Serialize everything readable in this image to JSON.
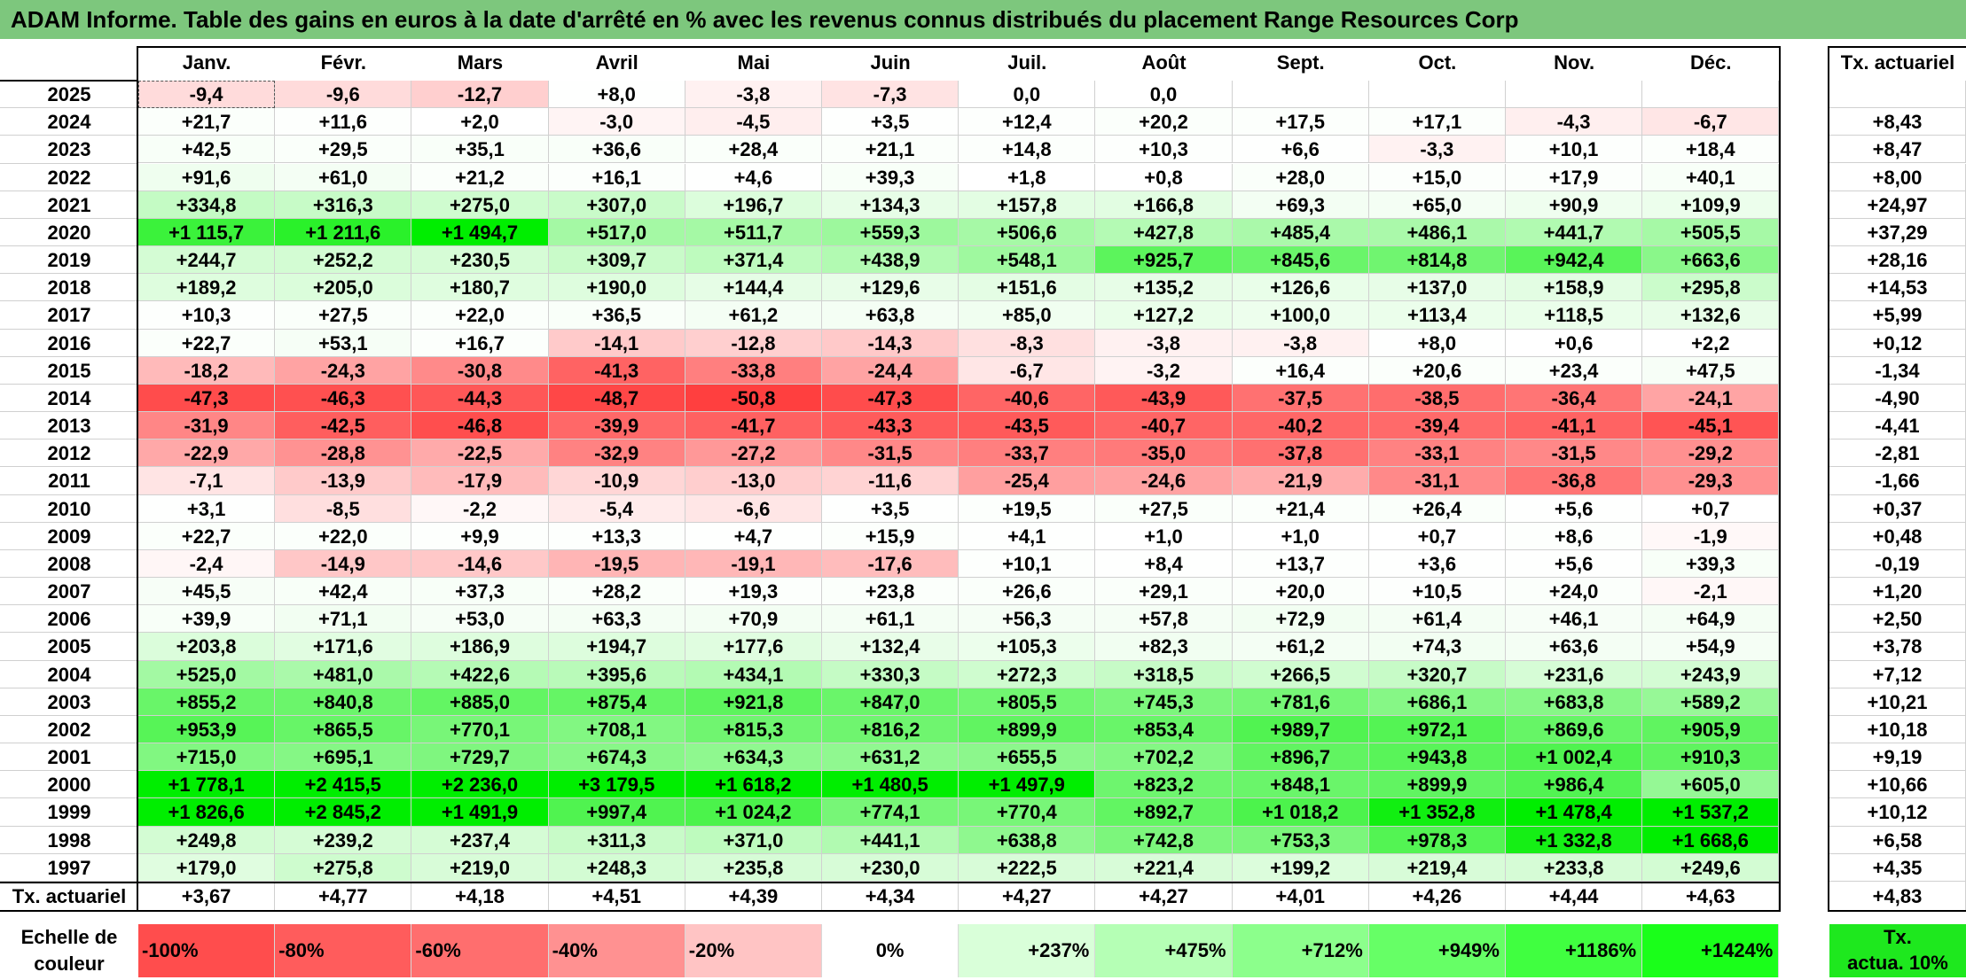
{
  "title": "ADAM Informe. Table des gains en euros à la date d'arrêté en % avec les revenus connus distribués du placement Range Resources Corp",
  "months": [
    "Janv.",
    "Févr.",
    "Mars",
    "Avril",
    "Mai",
    "Juin",
    "Juil.",
    "Août",
    "Sept.",
    "Oct.",
    "Nov.",
    "Déc."
  ],
  "annual_header": "Tx. actuariel",
  "rows": [
    {
      "year": "2025",
      "values": [
        "-9,4",
        "-9,6",
        "-12,7",
        "+8,0",
        "-3,8",
        "-7,3",
        "0,0",
        "0,0",
        "",
        "",
        "",
        ""
      ],
      "annual": ""
    },
    {
      "year": "2024",
      "values": [
        "+21,7",
        "+11,6",
        "+2,0",
        "-3,0",
        "-4,5",
        "+3,5",
        "+12,4",
        "+20,2",
        "+17,5",
        "+17,1",
        "-4,3",
        "-6,7"
      ],
      "annual": "+8,43"
    },
    {
      "year": "2023",
      "values": [
        "+42,5",
        "+29,5",
        "+35,1",
        "+36,6",
        "+28,4",
        "+21,1",
        "+14,8",
        "+10,3",
        "+6,6",
        "-3,3",
        "+10,1",
        "+18,4"
      ],
      "annual": "+8,47"
    },
    {
      "year": "2022",
      "values": [
        "+91,6",
        "+61,0",
        "+21,2",
        "+16,1",
        "+4,6",
        "+39,3",
        "+1,8",
        "+0,8",
        "+28,0",
        "+15,0",
        "+17,9",
        "+40,1"
      ],
      "annual": "+8,00"
    },
    {
      "year": "2021",
      "values": [
        "+334,8",
        "+316,3",
        "+275,0",
        "+307,0",
        "+196,7",
        "+134,3",
        "+157,8",
        "+166,8",
        "+69,3",
        "+65,0",
        "+90,9",
        "+109,9"
      ],
      "annual": "+24,97"
    },
    {
      "year": "2020",
      "values": [
        "+1 115,7",
        "+1 211,6",
        "+1 494,7",
        "+517,0",
        "+511,7",
        "+559,3",
        "+506,6",
        "+427,8",
        "+485,4",
        "+486,1",
        "+441,7",
        "+505,5"
      ],
      "annual": "+37,29"
    },
    {
      "year": "2019",
      "values": [
        "+244,7",
        "+252,2",
        "+230,5",
        "+309,7",
        "+371,4",
        "+438,9",
        "+548,1",
        "+925,7",
        "+845,6",
        "+814,8",
        "+942,4",
        "+663,6"
      ],
      "annual": "+28,16"
    },
    {
      "year": "2018",
      "values": [
        "+189,2",
        "+205,0",
        "+180,7",
        "+190,0",
        "+144,4",
        "+129,6",
        "+151,6",
        "+135,2",
        "+126,6",
        "+137,0",
        "+158,9",
        "+295,8"
      ],
      "annual": "+14,53"
    },
    {
      "year": "2017",
      "values": [
        "+10,3",
        "+27,5",
        "+22,0",
        "+36,5",
        "+61,2",
        "+63,8",
        "+85,0",
        "+127,2",
        "+100,0",
        "+113,4",
        "+118,5",
        "+132,6"
      ],
      "annual": "+5,99"
    },
    {
      "year": "2016",
      "values": [
        "+22,7",
        "+53,1",
        "+16,7",
        "-14,1",
        "-12,8",
        "-14,3",
        "-8,3",
        "-3,8",
        "-3,8",
        "+8,0",
        "+0,6",
        "+2,2"
      ],
      "annual": "+0,12"
    },
    {
      "year": "2015",
      "values": [
        "-18,2",
        "-24,3",
        "-30,8",
        "-41,3",
        "-33,8",
        "-24,4",
        "-6,7",
        "-3,2",
        "+16,4",
        "+20,6",
        "+23,4",
        "+47,5"
      ],
      "annual": "-1,34"
    },
    {
      "year": "2014",
      "values": [
        "-47,3",
        "-46,3",
        "-44,3",
        "-48,7",
        "-50,8",
        "-47,3",
        "-40,6",
        "-43,9",
        "-37,5",
        "-38,5",
        "-36,4",
        "-24,1"
      ],
      "annual": "-4,90"
    },
    {
      "year": "2013",
      "values": [
        "-31,9",
        "-42,5",
        "-46,8",
        "-39,9",
        "-41,7",
        "-43,3",
        "-43,5",
        "-40,7",
        "-40,2",
        "-39,4",
        "-41,1",
        "-45,1"
      ],
      "annual": "-4,41"
    },
    {
      "year": "2012",
      "values": [
        "-22,9",
        "-28,8",
        "-22,5",
        "-32,9",
        "-27,2",
        "-31,5",
        "-33,7",
        "-35,0",
        "-37,8",
        "-33,1",
        "-31,5",
        "-29,2"
      ],
      "annual": "-2,81"
    },
    {
      "year": "2011",
      "values": [
        "-7,1",
        "-13,9",
        "-17,9",
        "-10,9",
        "-13,0",
        "-11,6",
        "-25,4",
        "-24,6",
        "-21,9",
        "-31,1",
        "-36,8",
        "-29,3"
      ],
      "annual": "-1,66"
    },
    {
      "year": "2010",
      "values": [
        "+3,1",
        "-8,5",
        "-2,2",
        "-5,4",
        "-6,6",
        "+3,5",
        "+19,5",
        "+27,5",
        "+21,4",
        "+26,4",
        "+5,6",
        "+0,7"
      ],
      "annual": "+0,37"
    },
    {
      "year": "2009",
      "values": [
        "+22,7",
        "+22,0",
        "+9,9",
        "+13,3",
        "+4,7",
        "+15,9",
        "+4,1",
        "+1,0",
        "+1,0",
        "+0,7",
        "+8,6",
        "-1,9"
      ],
      "annual": "+0,48"
    },
    {
      "year": "2008",
      "values": [
        "-2,4",
        "-14,9",
        "-14,6",
        "-19,5",
        "-19,1",
        "-17,6",
        "+10,1",
        "+8,4",
        "+13,7",
        "+3,6",
        "+5,6",
        "+39,3"
      ],
      "annual": "-0,19"
    },
    {
      "year": "2007",
      "values": [
        "+45,5",
        "+42,4",
        "+37,3",
        "+28,2",
        "+19,3",
        "+23,8",
        "+26,6",
        "+29,1",
        "+20,0",
        "+10,5",
        "+24,0",
        "-2,1"
      ],
      "annual": "+1,20"
    },
    {
      "year": "2006",
      "values": [
        "+39,9",
        "+71,1",
        "+53,0",
        "+63,3",
        "+70,9",
        "+61,1",
        "+56,3",
        "+57,8",
        "+72,9",
        "+61,4",
        "+46,1",
        "+64,9"
      ],
      "annual": "+2,50"
    },
    {
      "year": "2005",
      "values": [
        "+203,8",
        "+171,6",
        "+186,9",
        "+194,7",
        "+177,6",
        "+132,4",
        "+105,3",
        "+82,3",
        "+61,2",
        "+74,3",
        "+63,6",
        "+54,9"
      ],
      "annual": "+3,78"
    },
    {
      "year": "2004",
      "values": [
        "+525,0",
        "+481,0",
        "+422,6",
        "+395,6",
        "+434,1",
        "+330,3",
        "+272,3",
        "+318,5",
        "+266,5",
        "+320,7",
        "+231,6",
        "+243,9"
      ],
      "annual": "+7,12"
    },
    {
      "year": "2003",
      "values": [
        "+855,2",
        "+840,8",
        "+885,0",
        "+875,4",
        "+921,8",
        "+847,0",
        "+805,5",
        "+745,3",
        "+781,6",
        "+686,1",
        "+683,8",
        "+589,2"
      ],
      "annual": "+10,21"
    },
    {
      "year": "2002",
      "values": [
        "+953,9",
        "+865,5",
        "+770,1",
        "+708,1",
        "+815,3",
        "+816,2",
        "+899,9",
        "+853,4",
        "+989,7",
        "+972,1",
        "+869,6",
        "+905,9"
      ],
      "annual": "+10,18"
    },
    {
      "year": "2001",
      "values": [
        "+715,0",
        "+695,1",
        "+729,7",
        "+674,3",
        "+634,3",
        "+631,2",
        "+655,5",
        "+702,2",
        "+896,7",
        "+943,8",
        "+1 002,4",
        "+910,3"
      ],
      "annual": "+9,19"
    },
    {
      "year": "2000",
      "values": [
        "+1 778,1",
        "+2 415,5",
        "+2 236,0",
        "+3 179,5",
        "+1 618,2",
        "+1 480,5",
        "+1 497,9",
        "+823,2",
        "+848,1",
        "+899,9",
        "+986,4",
        "+605,0"
      ],
      "annual": "+10,66"
    },
    {
      "year": "1999",
      "values": [
        "+1 826,6",
        "+2 845,2",
        "+1 491,9",
        "+997,4",
        "+1 024,2",
        "+774,1",
        "+770,4",
        "+892,7",
        "+1 018,2",
        "+1 352,8",
        "+1 478,4",
        "+1 537,2"
      ],
      "annual": "+10,12"
    },
    {
      "year": "1998",
      "values": [
        "+249,8",
        "+239,2",
        "+237,4",
        "+311,3",
        "+371,0",
        "+441,1",
        "+638,8",
        "+742,8",
        "+753,3",
        "+978,3",
        "+1 332,8",
        "+1 668,6"
      ],
      "annual": "+6,58"
    },
    {
      "year": "1997",
      "values": [
        "+179,0",
        "+275,8",
        "+219,0",
        "+248,3",
        "+235,8",
        "+230,0",
        "+222,5",
        "+221,4",
        "+199,2",
        "+219,4",
        "+233,8",
        "+249,6"
      ],
      "annual": "+4,35"
    }
  ],
  "footer": {
    "label": "Tx. actuariel",
    "values": [
      "+3,67",
      "+4,77",
      "+4,18",
      "+4,51",
      "+4,39",
      "+4,34",
      "+4,27",
      "+4,27",
      "+4,01",
      "+4,26",
      "+4,44",
      "+4,63"
    ],
    "annual": "+4,83"
  },
  "legend": {
    "label_line1": "Echelle de",
    "label_line2": "couleur",
    "items": [
      {
        "text": "-100%",
        "color": "#ff4d4d"
      },
      {
        "text": "-80%",
        "color": "#ff5c5c"
      },
      {
        "text": "-60%",
        "color": "#ff6e6e"
      },
      {
        "text": "-40%",
        "color": "#ff9191"
      },
      {
        "text": "-20%",
        "color": "#ffc4c4"
      },
      {
        "text": "0%",
        "color": "#ffffff"
      },
      {
        "text": "+237%",
        "color": "#d9ffd9"
      },
      {
        "text": "+475%",
        "color": "#b5ffb5"
      },
      {
        "text": "+712%",
        "color": "#8cff8c"
      },
      {
        "text": "+949%",
        "color": "#66ff66"
      },
      {
        "text": "+1186%",
        "color": "#40ff40"
      },
      {
        "text": "+1424%",
        "color": "#1aff1a"
      }
    ],
    "annual_line1": "Tx.",
    "annual_line2": "actua. 10%",
    "annual_color": "#1ee81e"
  },
  "colors": {
    "title_bar": "#7dc77d",
    "negative_max": "#ff3a3a",
    "positive_max": "#00ee00"
  }
}
